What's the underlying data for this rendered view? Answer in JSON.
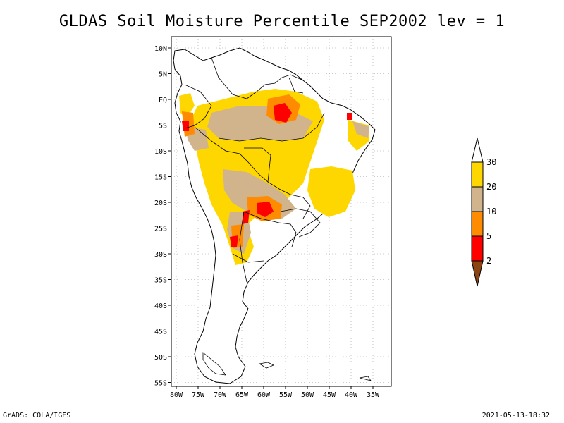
{
  "title": "GLDAS Soil Moisture Percentile SEP2002 lev = 1",
  "map": {
    "lat_labels": [
      "10N",
      "5N",
      "EQ",
      "5S",
      "10S",
      "15S",
      "20S",
      "25S",
      "30S",
      "35S",
      "40S",
      "45S",
      "50S",
      "55S"
    ],
    "lon_labels": [
      "80W",
      "75W",
      "70W",
      "65W",
      "60W",
      "55W",
      "50W",
      "45W",
      "40W",
      "35W"
    ]
  },
  "legend": {
    "levels": [
      "2",
      "5",
      "10",
      "20",
      "30"
    ],
    "colors": {
      "below_2": "#8B4513",
      "2_5": "#FF0000",
      "5_10": "#FF8C00",
      "10_20": "#D2B48C",
      "20_30": "#FFD700",
      "above_30": "#FFFFFF"
    }
  },
  "footer": {
    "left": "GrADS: COLA/IGES",
    "right": "2021-05-13-18:32"
  }
}
